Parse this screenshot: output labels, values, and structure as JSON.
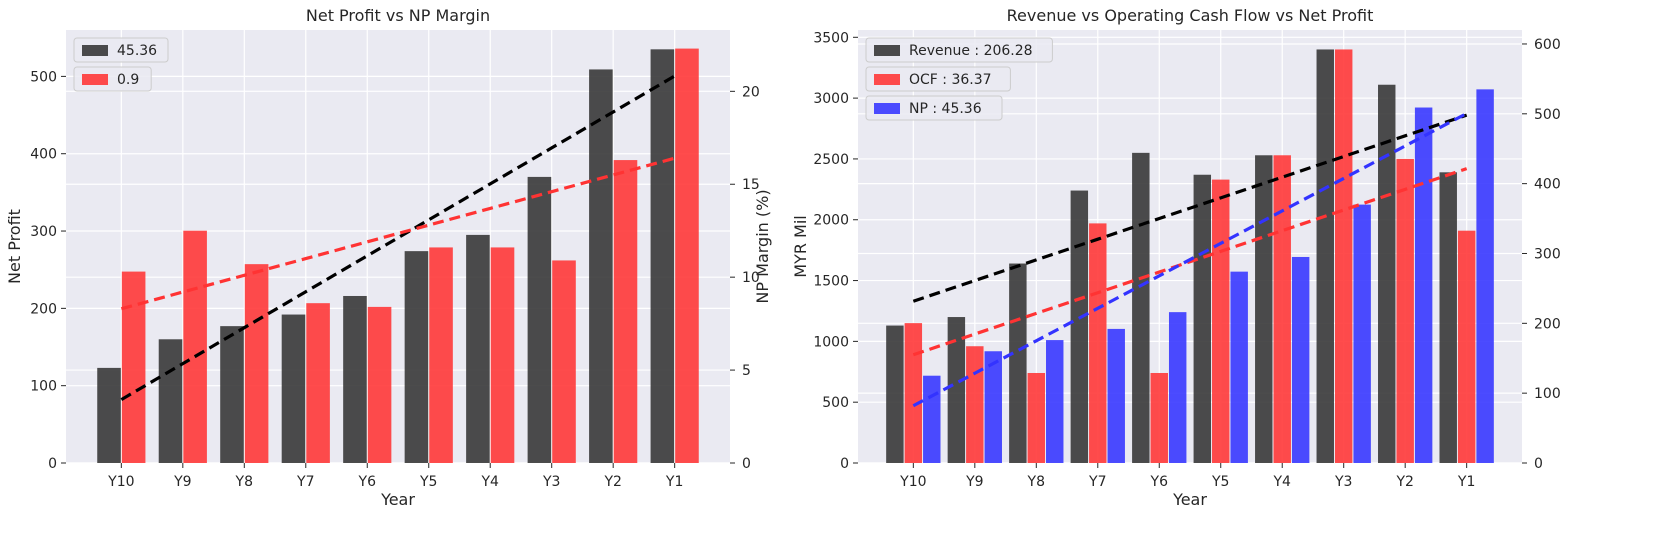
{
  "chart_data": [
    {
      "type": "bar",
      "title": "Net Profit vs NP Margin",
      "xlabel": "Year",
      "ylabel": "Net Profit",
      "y2label": "NP Margin (%)",
      "categories": [
        "Y10",
        "Y9",
        "Y8",
        "Y7",
        "Y6",
        "Y5",
        "Y4",
        "Y3",
        "Y2",
        "Y1"
      ],
      "ylim": [
        0,
        560
      ],
      "y2lim": [
        0,
        23.3
      ],
      "yticks": [
        "0",
        "100",
        "200",
        "300",
        "400",
        "500"
      ],
      "y2ticks": [
        "0",
        "5",
        "10",
        "15",
        "20"
      ],
      "grid": true,
      "legend_position": "top-left",
      "series": [
        {
          "name": "45.36",
          "axis": "left",
          "color": "#333333",
          "values": [
            123,
            160,
            177,
            192,
            216,
            274,
            295,
            370,
            509,
            535
          ],
          "trend": [
            82,
            128.5,
            175,
            221.5,
            268,
            314.5,
            361,
            407.5,
            454,
            500.5
          ]
        },
        {
          "name": "0.9",
          "axis": "right",
          "color": "#ff3333",
          "values": [
            10.3,
            12.5,
            10.7,
            8.6,
            8.4,
            11.6,
            11.6,
            10.9,
            16.3,
            22.3
          ],
          "trend": [
            8.3,
            9.2,
            10.1,
            11.0,
            11.9,
            12.8,
            13.7,
            14.6,
            15.5,
            16.4
          ]
        }
      ]
    },
    {
      "type": "bar",
      "title": "Revenue vs Operating Cash Flow vs Net Profit",
      "xlabel": "Year",
      "ylabel": "MYR Mil",
      "categories": [
        "Y10",
        "Y9",
        "Y8",
        "Y7",
        "Y6",
        "Y5",
        "Y4",
        "Y3",
        "Y2",
        "Y1"
      ],
      "ylim": [
        0,
        3560
      ],
      "y2lim": [
        0,
        620
      ],
      "yticks": [
        "0",
        "500",
        "1000",
        "1500",
        "2000",
        "2500",
        "3000",
        "3500"
      ],
      "y2ticks": [
        "0",
        "100",
        "200",
        "300",
        "400",
        "500",
        "600"
      ],
      "grid": true,
      "legend_position": "top-left",
      "series": [
        {
          "name": "Revenue : 206.28",
          "axis": "left",
          "color": "#333333",
          "values": [
            1130,
            1200,
            1640,
            2240,
            2550,
            2370,
            2530,
            3400,
            3110,
            2390
          ],
          "trend": [
            1330,
            1500,
            1670,
            1840,
            2010,
            2180,
            2350,
            2520,
            2690,
            2860
          ]
        },
        {
          "name": "OCF : 36.37",
          "axis": "left",
          "color": "#ff3333",
          "values": [
            1150,
            960,
            740,
            1970,
            740,
            2330,
            2530,
            3400,
            2500,
            1910
          ],
          "trend": [
            890,
            1060,
            1230,
            1400,
            1570,
            1740,
            1910,
            2080,
            2250,
            2420
          ]
        },
        {
          "name": "NP : 45.36",
          "axis": "right",
          "color": "#3333ff",
          "values": [
            125,
            160,
            176,
            192,
            216,
            274,
            295,
            370,
            509,
            535
          ],
          "trend": [
            82,
            128.5,
            175,
            221.5,
            268,
            314.5,
            361,
            407.5,
            454,
            500.5
          ]
        }
      ]
    }
  ]
}
